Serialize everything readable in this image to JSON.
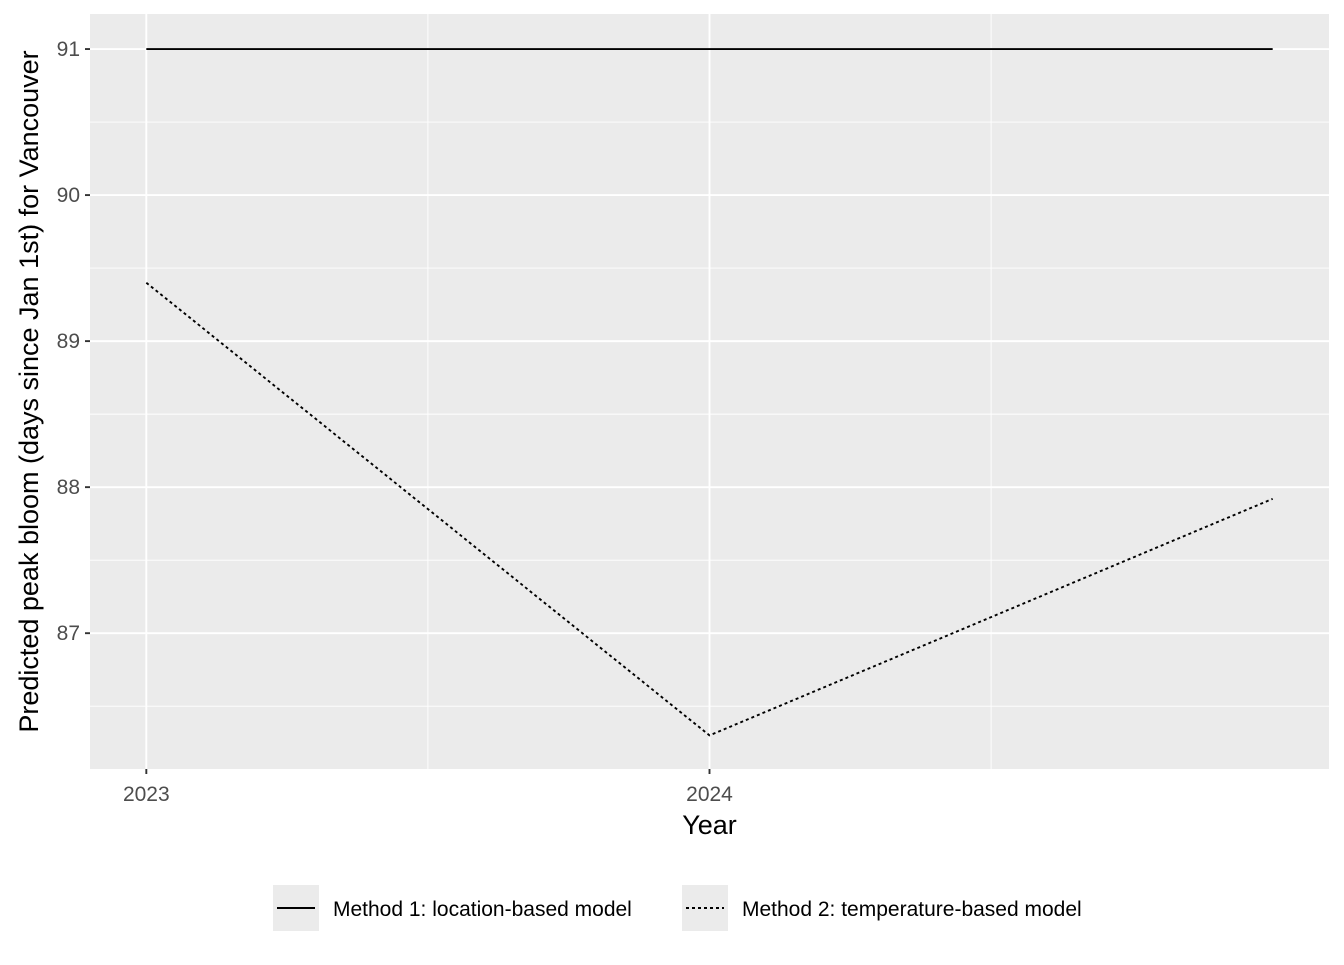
{
  "chart_data": {
    "type": "line",
    "title": "",
    "xlabel": "Year",
    "ylabel": "Predicted peak bloom (days since Jan 1st) for Vancouver",
    "x_ticks": [
      2023,
      2024
    ],
    "x_tick_labels": [
      "2023",
      "2024"
    ],
    "y_ticks": [
      87,
      88,
      89,
      90,
      91
    ],
    "y_tick_labels": [
      "87",
      "88",
      "89",
      "90",
      "91"
    ],
    "xlim": [
      2022.9,
      2025.1
    ],
    "ylim": [
      86.07,
      91.24
    ],
    "grid": true,
    "legend_position": "bottom",
    "series": [
      {
        "name": "Method 1: location-based model",
        "linetype": "solid",
        "color": "#000000",
        "x": [
          2023,
          2024,
          2025
        ],
        "y": [
          91.0,
          91.0,
          91.0
        ]
      },
      {
        "name": "Method 2: temperature-based model",
        "linetype": "dotted",
        "color": "#000000",
        "x": [
          2023,
          2024,
          2025
        ],
        "y": [
          89.4,
          86.3,
          87.92
        ]
      }
    ]
  },
  "colors": {
    "panel_background": "#ebebeb",
    "grid_major": "#ffffff",
    "grid_minor": "#f5f5f5",
    "tick_label": "#4d4d4d",
    "axis_title": "#000000"
  }
}
